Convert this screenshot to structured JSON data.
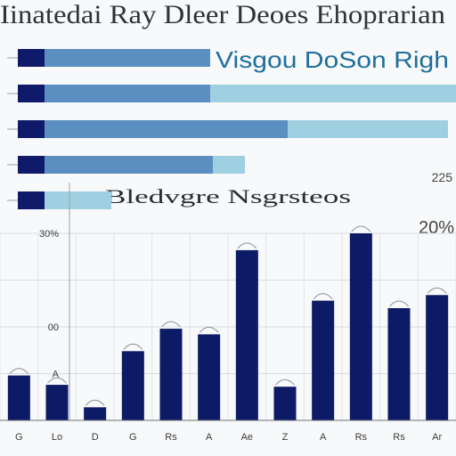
{
  "header": {
    "title": "Iinatedai Ray Dleer Deoes Ehoprarian",
    "subtitle": "Visgou DoSon Righ",
    "mid_title": "Bledvgre Nsgrsteos"
  },
  "side_labels": {
    "top": "225",
    "bottom": "20%"
  },
  "chart_data": [
    {
      "type": "bar",
      "orientation": "horizontal",
      "title": "",
      "rows": [
        {
          "dark": 1.0,
          "mid": 6.2,
          "light": 0
        },
        {
          "dark": 1.0,
          "mid": 6.2,
          "light": 10.0
        },
        {
          "dark": 1.0,
          "mid": 9.1,
          "light": 6.0
        },
        {
          "dark": 1.0,
          "mid": 6.3,
          "light": 1.2
        },
        {
          "dark": 1.0,
          "mid": 0,
          "light": 2.5
        }
      ],
      "colors": {
        "dark": "#101a6b",
        "mid": "#5b8fc2",
        "light": "#9fd0e2"
      }
    },
    {
      "type": "bar",
      "orientation": "vertical",
      "title": "",
      "ylim": [
        0,
        100
      ],
      "yticks": [
        "30%",
        "",
        "00",
        "A",
        ""
      ],
      "categories": [
        "G",
        "Lo",
        "D",
        "G",
        "Rs",
        "A",
        "Ae",
        "Z",
        "A",
        "Rs",
        "Rs",
        "Ar"
      ],
      "values": [
        24,
        19,
        7,
        37,
        49,
        46,
        91,
        18,
        64,
        100,
        60,
        67
      ],
      "color": "#0d1a66"
    }
  ]
}
